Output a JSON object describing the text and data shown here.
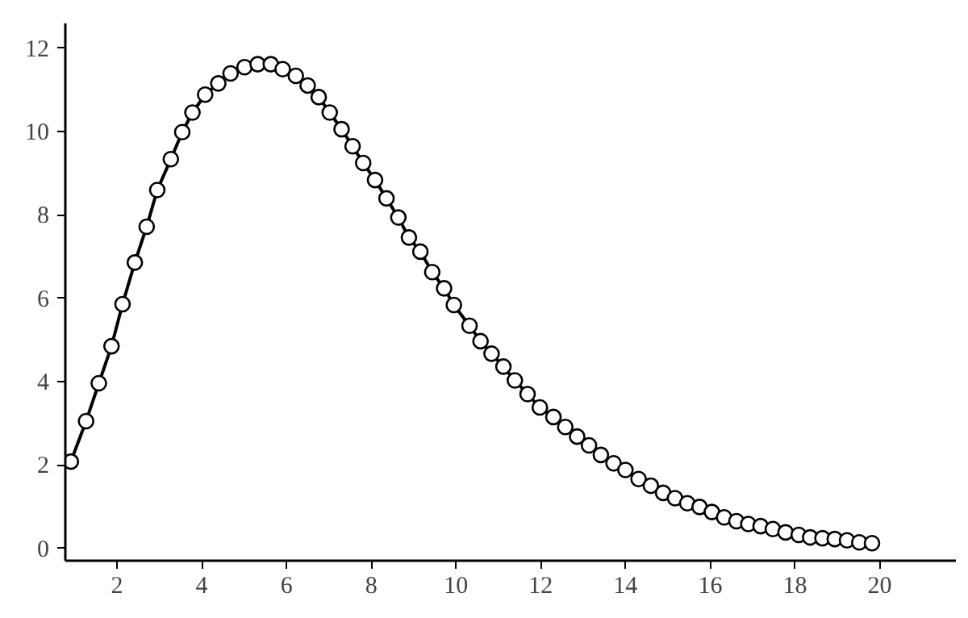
{
  "chart_data": {
    "type": "line",
    "marker": "circle",
    "line_style": "solid",
    "grid": false,
    "xlim": [
      0.78,
      21.8
    ],
    "ylim": [
      -0.3,
      12.6
    ],
    "xticks": [
      2,
      4,
      6,
      8,
      10,
      12,
      14,
      16,
      18,
      20
    ],
    "yticks": [
      0,
      2,
      4,
      6,
      8,
      10,
      12
    ],
    "series": [
      {
        "color": "#000000",
        "x": [
          0.91,
          1.27,
          1.57,
          1.87,
          2.13,
          2.42,
          2.7,
          2.95,
          3.27,
          3.54,
          3.78,
          4.08,
          4.39,
          4.68,
          5.01,
          5.32,
          5.63,
          5.91,
          6.22,
          6.5,
          6.76,
          7.02,
          7.3,
          7.56,
          7.81,
          8.09,
          8.36,
          8.64,
          8.89,
          9.16,
          9.44,
          9.72,
          9.95,
          10.32,
          10.58,
          10.84,
          11.12,
          11.39,
          11.69,
          11.98,
          12.3,
          12.58,
          12.86,
          13.14,
          13.42,
          13.72,
          14.0,
          14.31,
          14.6,
          14.89,
          15.17,
          15.46,
          15.75,
          16.04,
          16.33,
          16.62,
          16.9,
          17.19,
          17.48,
          17.78,
          18.09,
          18.36,
          18.65,
          18.94,
          19.23,
          19.52,
          19.82
        ],
        "values": [
          2.08,
          3.05,
          3.96,
          4.85,
          5.86,
          6.86,
          7.72,
          8.6,
          9.34,
          9.99,
          10.46,
          10.89,
          11.16,
          11.4,
          11.55,
          11.62,
          11.62,
          11.5,
          11.34,
          11.11,
          10.83,
          10.46,
          10.06,
          9.65,
          9.25,
          8.84,
          8.4,
          7.94,
          7.46,
          7.12,
          6.63,
          6.24,
          5.84,
          5.34,
          4.97,
          4.67,
          4.36,
          4.03,
          3.7,
          3.38,
          3.15,
          2.91,
          2.68,
          2.47,
          2.24,
          2.04,
          1.88,
          1.66,
          1.5,
          1.33,
          1.2,
          1.08,
          0.99,
          0.87,
          0.74,
          0.65,
          0.58,
          0.53,
          0.46,
          0.38,
          0.32,
          0.26,
          0.24,
          0.22,
          0.19,
          0.14,
          0.12
        ]
      }
    ]
  }
}
